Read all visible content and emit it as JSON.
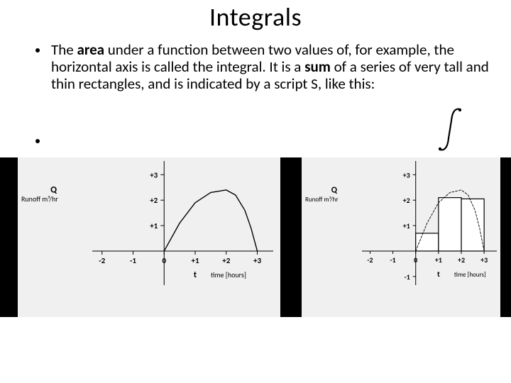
{
  "title": "Integrals",
  "bullet_text": "The <b>area</b> under a function between two values of, for example, the horizontal axis is called the integral. It is a <b>sum</b> of a series of very tall and thin rectangles, and is indicated by a script S, like this:",
  "integral_symbol": {
    "stroke": "#000000",
    "stroke_width": 2.2
  },
  "left_chart": {
    "type": "line",
    "background": "#f0f0f0",
    "axis_color": "#000000",
    "text_color": "#000000",
    "font_size_tick": 11,
    "font_size_label": 11,
    "y_label_1": "Q",
    "y_label_2": "Runoff m³/hr",
    "x_label_1": "t",
    "x_label_2": "time [hours]",
    "x_ticks": [
      "-2",
      "-1",
      "0",
      "+1",
      "+2",
      "+3"
    ],
    "y_ticks": [
      "+1",
      "+2",
      "+3"
    ],
    "curve": {
      "stroke": "#000000",
      "stroke_width": 1.4,
      "points": [
        {
          "x": 0.0,
          "y": 0.0
        },
        {
          "x": 0.5,
          "y": 1.1
        },
        {
          "x": 1.0,
          "y": 1.9
        },
        {
          "x": 1.5,
          "y": 2.3
        },
        {
          "x": 2.0,
          "y": 2.4
        },
        {
          "x": 2.3,
          "y": 2.2
        },
        {
          "x": 2.6,
          "y": 1.6
        },
        {
          "x": 2.8,
          "y": 0.9
        },
        {
          "x": 3.0,
          "y": 0.0
        }
      ]
    },
    "xlim": [
      -2.2,
      3.4
    ],
    "ylim": [
      -1.2,
      3.4
    ],
    "tick_len": 5
  },
  "right_chart": {
    "type": "bar-with-curve",
    "background": "#f0f0f0",
    "axis_color": "#000000",
    "text_color": "#000000",
    "font_size_tick": 10,
    "font_size_label": 10,
    "y_label_1": "Q",
    "y_label_2": "Runoff m³/hr",
    "x_label_1": "t",
    "x_label_2": "time [hours]",
    "x_ticks": [
      "-2",
      "-1",
      "0",
      "+1",
      "+2",
      "+3"
    ],
    "y_ticks_neg": [
      "-1"
    ],
    "y_ticks_pos": [
      "+1",
      "+2",
      "+3"
    ],
    "bars": [
      {
        "x0": 0.0,
        "x1": 1.0,
        "h": 0.7
      },
      {
        "x0": 1.0,
        "x1": 2.0,
        "h": 2.1
      },
      {
        "x0": 2.0,
        "x1": 3.0,
        "h": 2.05
      }
    ],
    "bar_fill": "#ffffff",
    "bar_stroke": "#000000",
    "bar_stroke_width": 1.2,
    "curve": {
      "stroke": "#000000",
      "stroke_width": 0.9,
      "dash": "3,2",
      "points": [
        {
          "x": 0.0,
          "y": 0.0
        },
        {
          "x": 0.5,
          "y": 1.1
        },
        {
          "x": 1.0,
          "y": 1.9
        },
        {
          "x": 1.5,
          "y": 2.3
        },
        {
          "x": 2.0,
          "y": 2.4
        },
        {
          "x": 2.3,
          "y": 2.2
        },
        {
          "x": 2.6,
          "y": 1.6
        },
        {
          "x": 2.8,
          "y": 0.9
        },
        {
          "x": 3.0,
          "y": 0.0
        }
      ]
    },
    "xlim": [
      -2.2,
      3.4
    ],
    "ylim": [
      -1.2,
      3.4
    ],
    "tick_len": 4
  }
}
